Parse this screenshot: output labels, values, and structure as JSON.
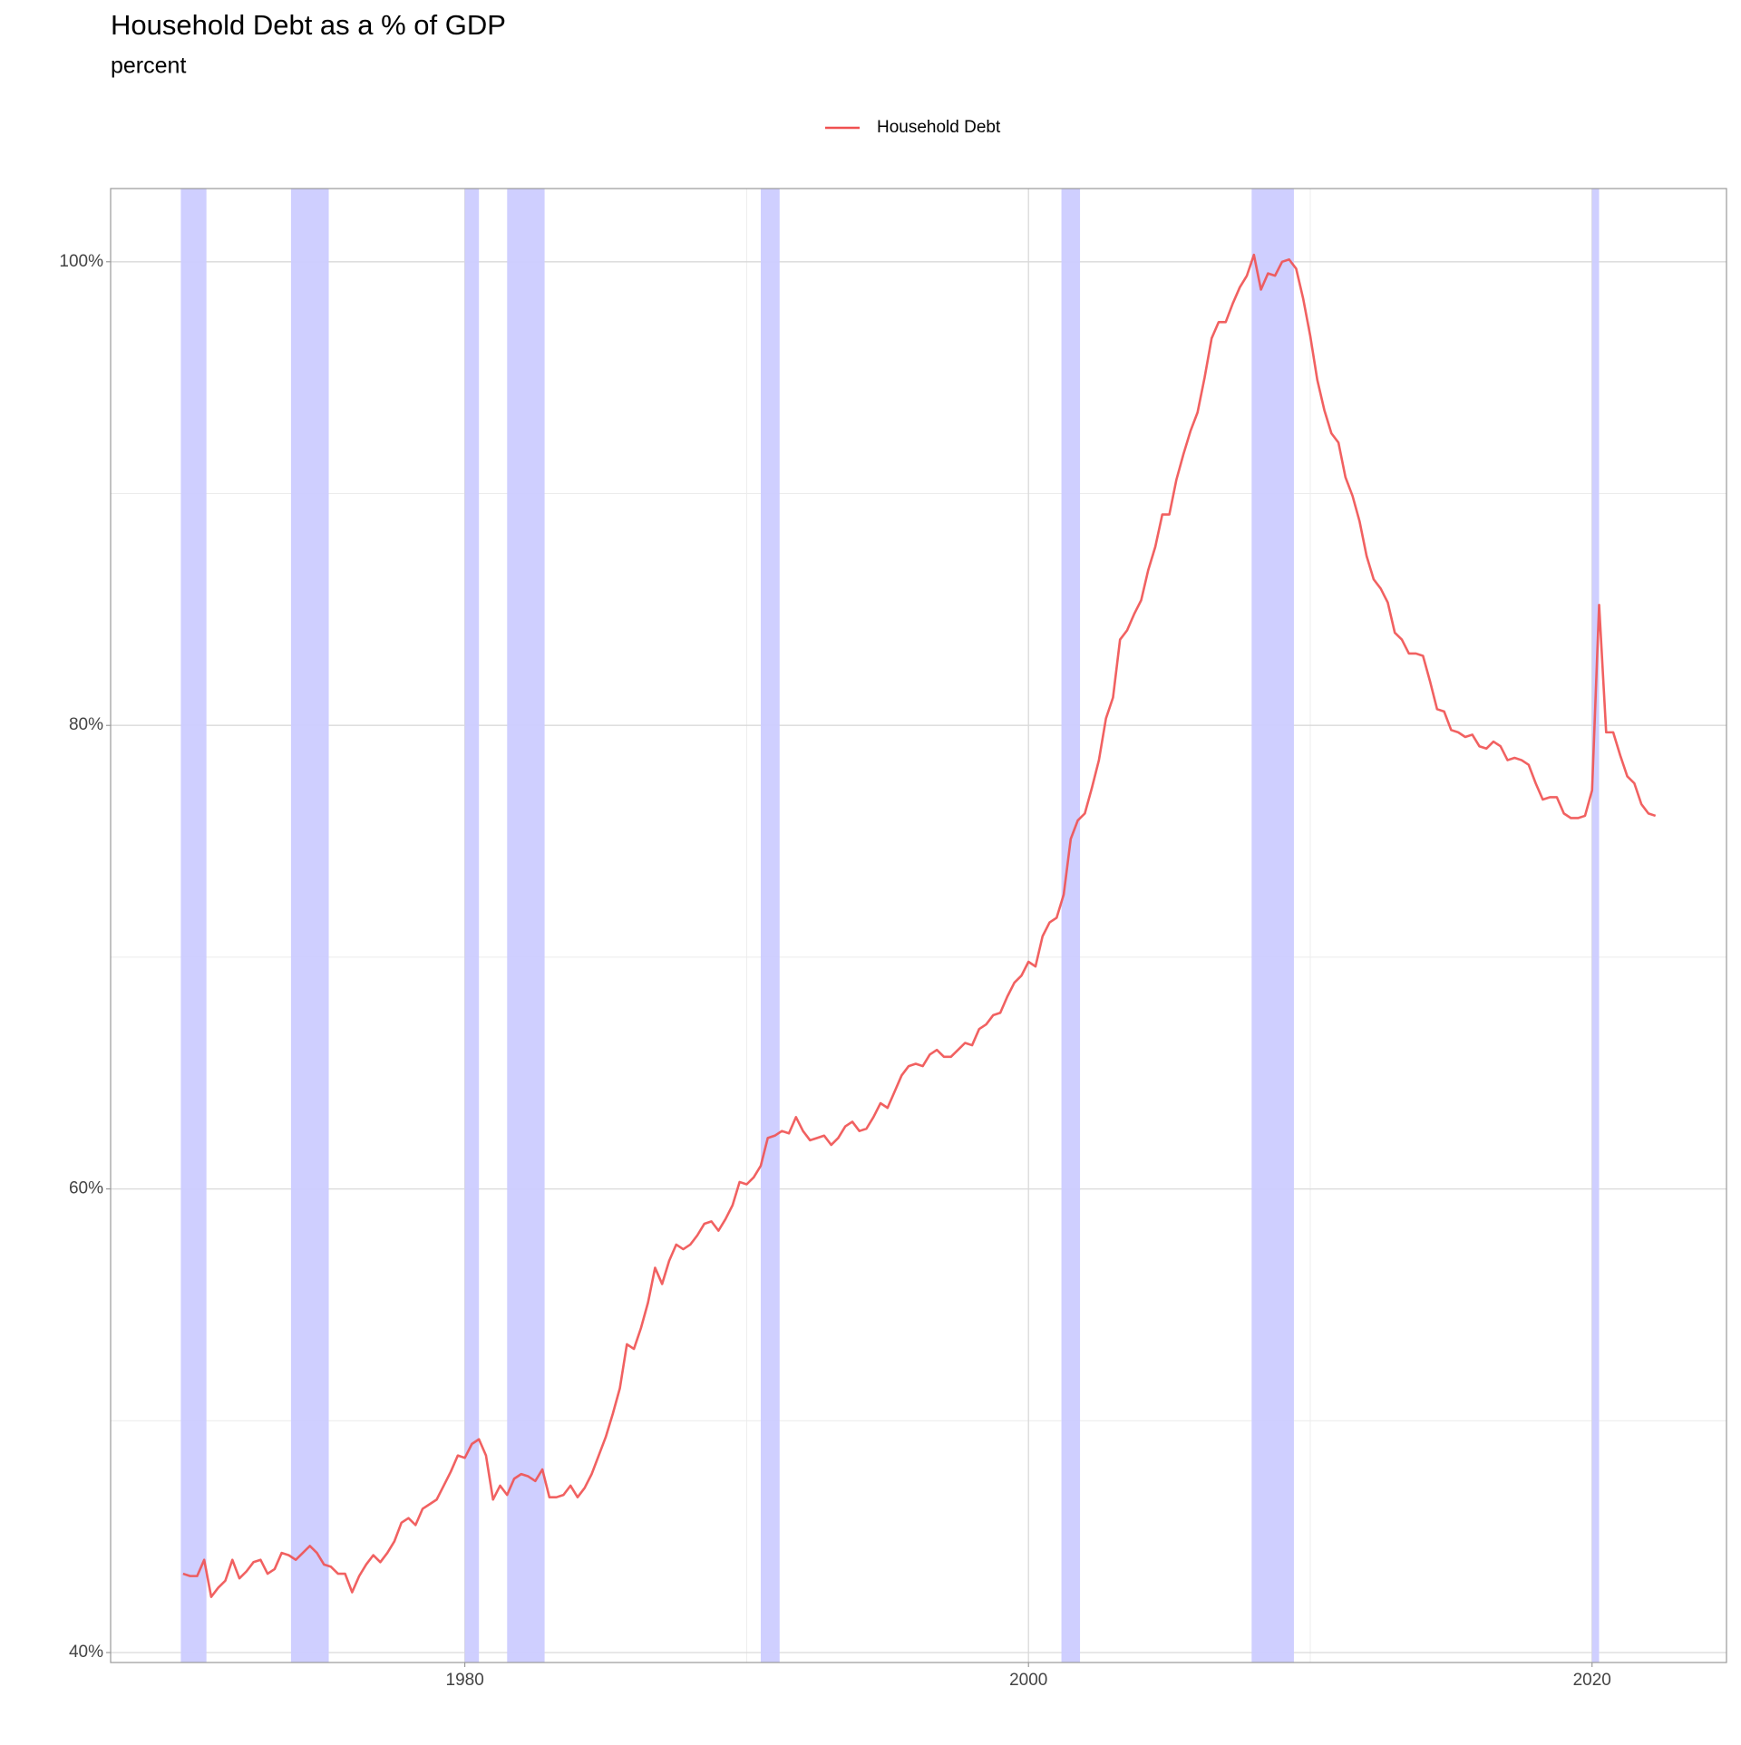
{
  "chart_data": {
    "type": "line",
    "title": "Household Debt as a % of GDP",
    "subtitle": "percent",
    "x": [
      1970,
      1970.25,
      1970.5,
      1970.75,
      1971,
      1971.25,
      1971.5,
      1971.75,
      1972,
      1972.25,
      1972.5,
      1972.75,
      1973,
      1973.25,
      1973.5,
      1973.75,
      1974,
      1974.25,
      1974.5,
      1974.75,
      1975,
      1975.25,
      1975.5,
      1975.75,
      1976,
      1976.25,
      1976.5,
      1976.75,
      1977,
      1977.25,
      1977.5,
      1977.75,
      1978,
      1978.25,
      1978.5,
      1978.75,
      1979,
      1979.25,
      1979.5,
      1979.75,
      1980,
      1980.25,
      1980.5,
      1980.75,
      1981,
      1981.25,
      1981.5,
      1981.75,
      1982,
      1982.25,
      1982.5,
      1982.75,
      1983,
      1983.25,
      1983.5,
      1983.75,
      1984,
      1984.25,
      1984.5,
      1984.75,
      1985,
      1985.25,
      1985.5,
      1985.75,
      1986,
      1986.25,
      1986.5,
      1986.75,
      1987,
      1987.25,
      1987.5,
      1987.75,
      1988,
      1988.25,
      1988.5,
      1988.75,
      1989,
      1989.25,
      1989.5,
      1989.75,
      1990,
      1990.25,
      1990.5,
      1990.75,
      1991,
      1991.25,
      1991.5,
      1991.75,
      1992,
      1992.25,
      1992.5,
      1992.75,
      1993,
      1993.25,
      1993.5,
      1993.75,
      1994,
      1994.25,
      1994.5,
      1994.75,
      1995,
      1995.25,
      1995.5,
      1995.75,
      1996,
      1996.25,
      1996.5,
      1996.75,
      1997,
      1997.25,
      1997.5,
      1997.75,
      1998,
      1998.25,
      1998.5,
      1998.75,
      1999,
      1999.25,
      1999.5,
      1999.75,
      2000,
      2000.25,
      2000.5,
      2000.75,
      2001,
      2001.25,
      2001.5,
      2001.75,
      2002,
      2002.25,
      2002.5,
      2002.75,
      2003,
      2003.25,
      2003.5,
      2003.75,
      2004,
      2004.25,
      2004.5,
      2004.75,
      2005,
      2005.25,
      2005.5,
      2005.75,
      2006,
      2006.25,
      2006.5,
      2006.75,
      2007,
      2007.25,
      2007.5,
      2007.75,
      2008,
      2008.25,
      2008.5,
      2008.75,
      2009,
      2009.25,
      2009.5,
      2009.75,
      2010,
      2010.25,
      2010.5,
      2010.75,
      2011,
      2011.25,
      2011.5,
      2011.75,
      2012,
      2012.25,
      2012.5,
      2012.75,
      2013,
      2013.25,
      2013.5,
      2013.75,
      2014,
      2014.25,
      2014.5,
      2014.75,
      2015,
      2015.25,
      2015.5,
      2015.75,
      2016,
      2016.25,
      2016.5,
      2016.75,
      2017,
      2017.25,
      2017.5,
      2017.75,
      2018,
      2018.25,
      2018.5,
      2018.75,
      2019,
      2019.25,
      2019.5,
      2019.75,
      2020,
      2020.25,
      2020.5,
      2020.75,
      2021,
      2021.25,
      2021.5,
      2021.75,
      2022,
      2022.25
    ],
    "series": [
      {
        "name": "Household Debt",
        "color": "#f05050",
        "values": [
          43.4,
          43.3,
          43.3,
          44.0,
          42.4,
          42.8,
          43.1,
          44.0,
          43.2,
          43.5,
          43.9,
          44.0,
          43.4,
          43.6,
          44.3,
          44.2,
          44.0,
          44.3,
          44.6,
          44.3,
          43.8,
          43.7,
          43.4,
          43.4,
          42.6,
          43.3,
          43.8,
          44.2,
          43.9,
          44.3,
          44.8,
          45.6,
          45.8,
          45.5,
          46.2,
          46.4,
          46.6,
          47.2,
          47.8,
          48.5,
          48.4,
          49.0,
          49.2,
          48.5,
          46.6,
          47.2,
          46.8,
          47.5,
          47.7,
          47.6,
          47.4,
          47.9,
          46.7,
          46.7,
          46.8,
          47.2,
          46.7,
          47.1,
          47.7,
          48.5,
          49.3,
          50.3,
          51.4,
          53.3,
          53.1,
          54.0,
          55.1,
          56.6,
          55.9,
          56.9,
          57.6,
          57.4,
          57.6,
          58.0,
          58.5,
          58.6,
          58.2,
          58.7,
          59.3,
          60.3,
          60.2,
          60.5,
          61.0,
          62.2,
          62.3,
          62.5,
          62.4,
          63.1,
          62.5,
          62.1,
          62.2,
          62.3,
          61.9,
          62.2,
          62.7,
          62.9,
          62.5,
          62.6,
          63.1,
          63.7,
          63.5,
          64.2,
          64.9,
          65.3,
          65.4,
          65.3,
          65.8,
          66.0,
          65.7,
          65.7,
          66.0,
          66.3,
          66.2,
          66.9,
          67.1,
          67.5,
          67.6,
          68.3,
          68.9,
          69.2,
          69.8,
          69.6,
          70.9,
          71.5,
          71.7,
          72.7,
          75.1,
          75.9,
          76.2,
          77.3,
          78.5,
          80.3,
          81.2,
          83.7,
          84.1,
          84.8,
          85.4,
          86.7,
          87.7,
          89.1,
          89.1,
          90.6,
          91.7,
          92.7,
          93.5,
          95.0,
          96.7,
          97.4,
          97.4,
          98.2,
          98.9,
          99.4,
          100.3,
          98.8,
          99.5,
          99.4,
          100.0,
          100.1,
          99.7,
          98.4,
          96.8,
          94.9,
          93.6,
          92.6,
          92.2,
          90.7,
          89.9,
          88.8,
          87.3,
          86.3,
          85.9,
          85.3,
          84.0,
          83.7,
          83.1,
          83.1,
          83.0,
          81.9,
          80.7,
          80.6,
          79.8,
          79.7,
          79.5,
          79.6,
          79.1,
          79.0,
          79.3,
          79.1,
          78.5,
          78.6,
          78.5,
          78.3,
          77.5,
          76.8,
          76.9,
          76.9,
          76.2,
          76.0,
          76.0,
          76.1,
          77.2,
          85.2,
          79.7,
          79.7,
          78.7,
          77.8,
          77.5,
          76.6,
          76.2,
          76.1
        ]
      }
    ],
    "recessions": [
      [
        1969.92,
        1970.83
      ],
      [
        1973.83,
        1975.17
      ],
      [
        1980.0,
        1980.5
      ],
      [
        1981.5,
        1982.83
      ],
      [
        1990.5,
        1991.17
      ],
      [
        2001.17,
        2001.83
      ],
      [
        2007.92,
        2009.42
      ],
      [
        2020.0,
        2020.25
      ]
    ],
    "recession_color": "#ccccff",
    "xlim": [
      1967.43,
      2024.77
    ],
    "xticks": [
      1980,
      2000,
      2020
    ],
    "xminorticks": [
      1970,
      1990,
      2010
    ],
    "ylim": [
      39.57,
      103.16
    ],
    "yticks": [
      {
        "value": 40,
        "label": "40%"
      },
      {
        "value": 60,
        "label": "60%"
      },
      {
        "value": 80,
        "label": "80%"
      },
      {
        "value": 100,
        "label": "100%"
      }
    ],
    "yminorticks": [
      50,
      70,
      90
    ],
    "grid": true,
    "legend": "top"
  }
}
